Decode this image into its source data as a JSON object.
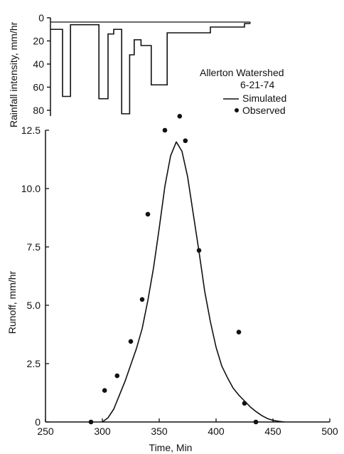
{
  "chart_data": [
    {
      "type": "bar",
      "ylabel": "Rainfall intensity, mm/hr",
      "y_tick_labels": [
        "0",
        "20",
        "40",
        "60",
        "80"
      ],
      "y_ticks": [
        0,
        20,
        40,
        60,
        80
      ],
      "ylim": [
        0,
        80
      ],
      "y_inverted": true,
      "x_shared_with_runoff": true,
      "series": [
        {
          "style": "step",
          "intervals": [
            {
              "start": 250,
              "end": 265,
              "value": 10
            },
            {
              "start": 265,
              "end": 272,
              "value": 68
            },
            {
              "start": 272,
              "end": 297,
              "value": 6
            },
            {
              "start": 297,
              "end": 305,
              "value": 70
            },
            {
              "start": 305,
              "end": 310,
              "value": 14
            },
            {
              "start": 310,
              "end": 317,
              "value": 10
            },
            {
              "start": 317,
              "end": 324,
              "value": 83
            },
            {
              "start": 324,
              "end": 328,
              "value": 32
            },
            {
              "start": 328,
              "end": 334,
              "value": 19
            },
            {
              "start": 334,
              "end": 341,
              "value": 24
            },
            {
              "start": 341,
              "end": 343,
              "value": 24
            },
            {
              "start": 343,
              "end": 357,
              "value": 58
            },
            {
              "start": 357,
              "end": 375,
              "value": 13
            },
            {
              "start": 375,
              "end": 382,
              "value": 13
            },
            {
              "start": 382,
              "end": 390,
              "value": 13
            },
            {
              "start": 390,
              "end": 395,
              "value": 13
            },
            {
              "start": 395,
              "end": 425,
              "value": 8
            },
            {
              "start": 425,
              "end": 430,
              "value": 5
            }
          ]
        }
      ]
    },
    {
      "type": "line",
      "legend_title": "Allerton Watershed",
      "legend_subtitle": "6-21-74",
      "legend_placement": "top-right",
      "xlabel": "Time, Min",
      "ylabel": "Runoff, mm/hr",
      "xlim": [
        250,
        500
      ],
      "ylim": [
        0,
        12.5
      ],
      "x_ticks": [
        250,
        300,
        350,
        400,
        450,
        500
      ],
      "x_tick_labels": [
        "250",
        "300",
        "350",
        "400",
        "450",
        "500"
      ],
      "y_ticks": [
        0,
        2.5,
        5.0,
        7.5,
        10.0,
        12.5
      ],
      "y_tick_labels": [
        "0",
        "2.5",
        "5.0",
        "7.5",
        "10.0",
        "12.5"
      ],
      "grid": false,
      "series": [
        {
          "name": "Simulated",
          "style": "line",
          "x": [
            300,
            305,
            310,
            315,
            320,
            325,
            330,
            335,
            340,
            345,
            350,
            355,
            360,
            365,
            370,
            375,
            380,
            385,
            390,
            395,
            400,
            405,
            410,
            415,
            420,
            425,
            430,
            435,
            440,
            445,
            450,
            455,
            460
          ],
          "y": [
            0.0,
            0.18,
            0.55,
            1.15,
            1.75,
            2.45,
            3.15,
            4.0,
            5.2,
            6.6,
            8.3,
            10.1,
            11.4,
            12.0,
            11.6,
            10.5,
            8.9,
            7.3,
            5.6,
            4.3,
            3.2,
            2.4,
            1.9,
            1.45,
            1.15,
            0.9,
            0.65,
            0.45,
            0.28,
            0.15,
            0.07,
            0.03,
            0.0
          ]
        },
        {
          "name": "Observed",
          "style": "points",
          "x": [
            290,
            302,
            313,
            325,
            335,
            340,
            355,
            368,
            373,
            385,
            420,
            425,
            435
          ],
          "y": [
            0.0,
            1.35,
            1.98,
            3.45,
            5.25,
            8.9,
            12.5,
            13.1,
            12.05,
            7.35,
            3.85,
            0.8,
            0.0
          ]
        }
      ]
    }
  ]
}
